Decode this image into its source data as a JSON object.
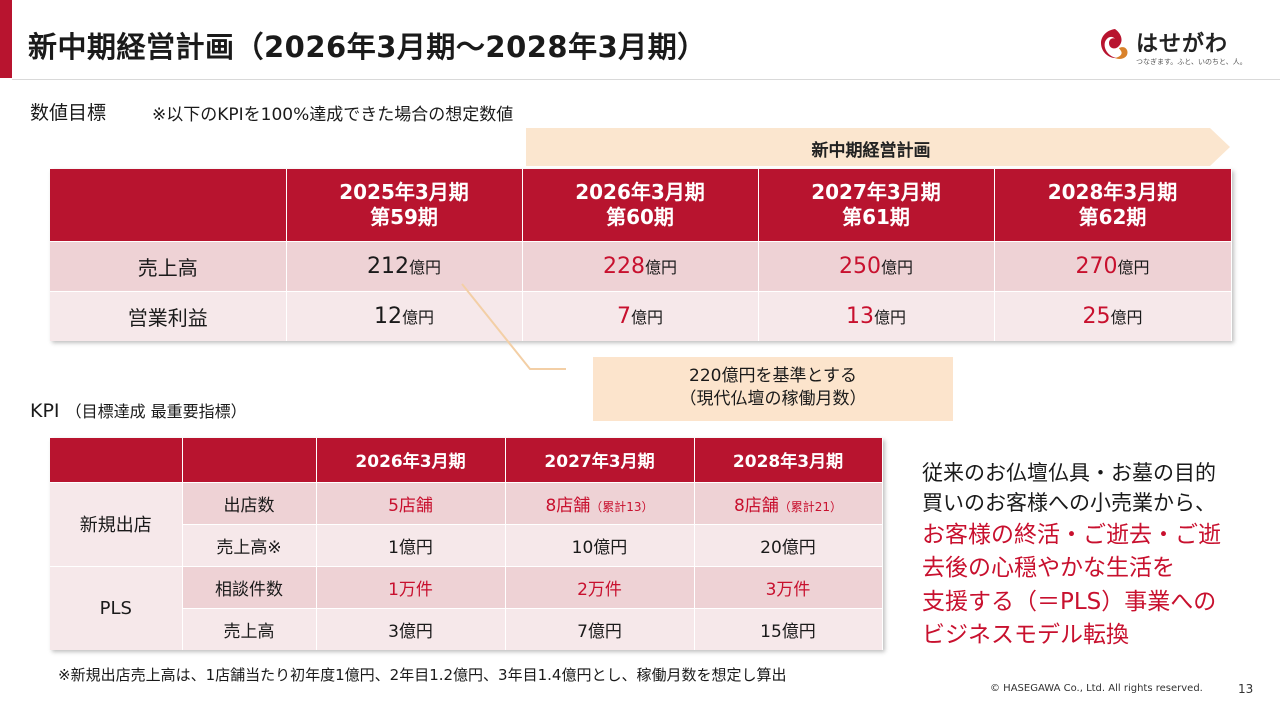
{
  "title": "新中期経営計画（2026年3月期～2028年3月期）",
  "logo": {
    "name": "はせがわ",
    "tagline": "つなぎます。ふと、いのちと、人。",
    "color": "#b8142f"
  },
  "targets": {
    "heading": "数値目標",
    "note": "※以下のKPIを100%達成できた場合の想定数値",
    "plan_label": "新中期経営計画",
    "columns": [
      {
        "line1": "2025年3月期",
        "line2": "第59期"
      },
      {
        "line1": "2026年3月期",
        "line2": "第60期"
      },
      {
        "line1": "2027年3月期",
        "line2": "第61期"
      },
      {
        "line1": "2028年3月期",
        "line2": "第62期"
      }
    ],
    "rows": [
      {
        "label": "売上高",
        "values": [
          "212",
          "228",
          "250",
          "270"
        ]
      },
      {
        "label": "営業利益",
        "values": [
          "12",
          "7",
          "13",
          "25"
        ]
      }
    ],
    "unit": "億円",
    "callout": {
      "line1": "220億円を基準とする",
      "line2": "（現代仏壇の稼働月数）"
    }
  },
  "kpi": {
    "heading": "KPI",
    "subheading": "（目標達成 最重要指標）",
    "columns": [
      "2026年3月期",
      "2027年3月期",
      "2028年3月期"
    ],
    "groups": [
      {
        "label": "新規出店",
        "rows": [
          {
            "label": "出店数",
            "cells": [
              {
                "main": "5店舗",
                "sub": ""
              },
              {
                "main": "8店舗",
                "sub": "（累計13）"
              },
              {
                "main": "8店舗",
                "sub": "（累計21）"
              }
            ]
          },
          {
            "label": "売上高※",
            "cells": [
              {
                "main": "1億円",
                "sub": ""
              },
              {
                "main": "10億円",
                "sub": ""
              },
              {
                "main": "20億円",
                "sub": ""
              }
            ]
          }
        ]
      },
      {
        "label": "PLS",
        "rows": [
          {
            "label": "相談件数",
            "cells": [
              {
                "main": "1万件",
                "sub": ""
              },
              {
                "main": "2万件",
                "sub": ""
              },
              {
                "main": "3万件",
                "sub": ""
              }
            ]
          },
          {
            "label": "売上高",
            "cells": [
              {
                "main": "3億円",
                "sub": ""
              },
              {
                "main": "7億円",
                "sub": ""
              },
              {
                "main": "15億円",
                "sub": ""
              }
            ]
          }
        ]
      }
    ]
  },
  "side_message": {
    "black": [
      "従来のお仏壇仏具・お墓の目的",
      "買いのお客様への小売業から、"
    ],
    "red": [
      "お客様の終活・ご逝去・ご逝",
      "去後の心穏やかな生活を",
      "支援する（＝PLS）事業への",
      "ビジネスモデル転換"
    ]
  },
  "footnote": "※新規出店売上高は、1店舗当たり初年度1億円、2年目1.2億円、3年目1.4億円とし、稼働月数を想定し算出",
  "copyright": "© HASEGAWA Co., Ltd. All rights reserved.",
  "page_number": "13",
  "colors": {
    "header_red": "#b8142f",
    "highlight_red": "#c8102e",
    "row_pink": "#eed2d5",
    "row_light": "#f6e8ea",
    "arrow_peach": "#fbe6cf",
    "callout_peach": "#fce4cc"
  }
}
